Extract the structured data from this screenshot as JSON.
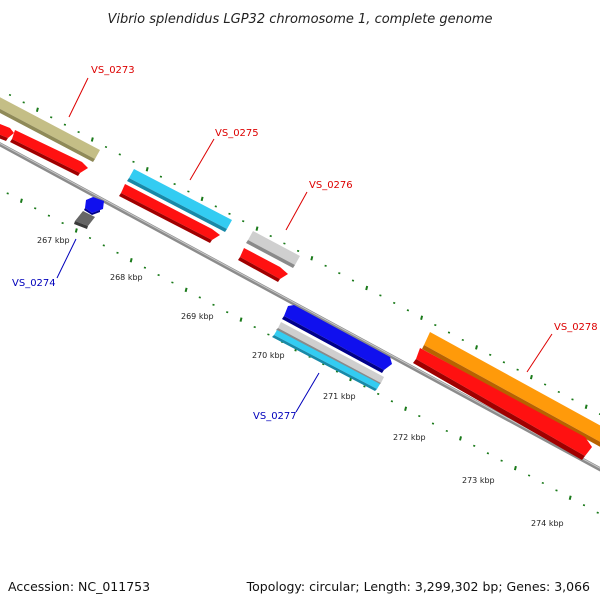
{
  "header": {
    "title": "Vibrio splendidus LGP32 chromosome 1, complete genome"
  },
  "footer": {
    "accession": "Accession: NC_011753",
    "summary": "Topology: circular; Length: 3,299,302 bp; Genes: 3,066"
  },
  "scale": {
    "ticks": [
      "267 kbp",
      "268 kbp",
      "269 kbp",
      "270 kbp",
      "271 kbp",
      "272 kbp",
      "273 kbp",
      "274 kbp"
    ]
  },
  "genes": [
    {
      "name": "VS_0273",
      "color": "#dd0000"
    },
    {
      "name": "VS_0274",
      "color": "#0000bb"
    },
    {
      "name": "VS_0275",
      "color": "#dd0000"
    },
    {
      "name": "VS_0276",
      "color": "#dd0000"
    },
    {
      "name": "VS_0277",
      "color": "#0000bb"
    },
    {
      "name": "VS_0278",
      "color": "#dd0000"
    }
  ],
  "colors": {
    "backbone": "#8c8c8c",
    "tick": "#1a7a1a",
    "red": "#ff1111",
    "blue": "#1010ee",
    "olive": "#c4be86",
    "cyan": "#33ccf2",
    "silver": "#cfcfcf",
    "orange": "#ff9a0a",
    "dark": "#666666"
  }
}
